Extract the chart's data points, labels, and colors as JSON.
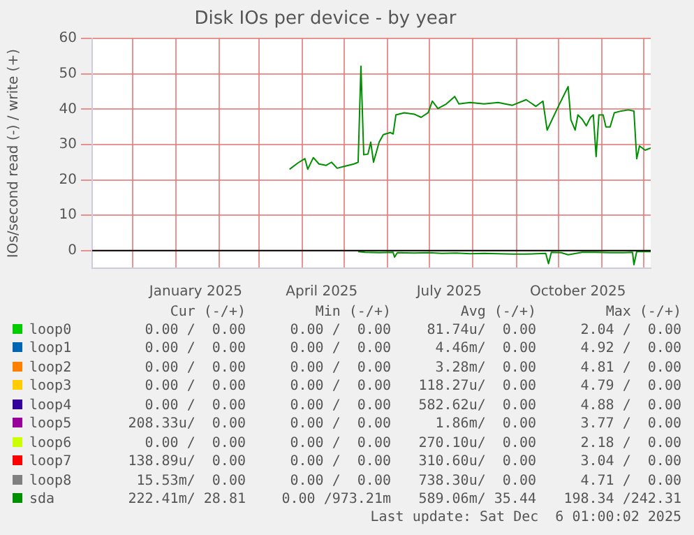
{
  "chart_data": {
    "type": "line",
    "title": "Disk IOs per device - by year",
    "ylabel": "IOs/second read (-) / write (+)",
    "xlim": [
      "2024-11-02",
      "2025-12-06"
    ],
    "xticks": [
      {
        "value": "2024-12-01",
        "label": null
      },
      {
        "value": "2025-01-01",
        "label": null
      },
      {
        "value": "2025-01-15",
        "label": "January 2025"
      },
      {
        "value": "2025-02-01",
        "label": null
      },
      {
        "value": "2025-03-01",
        "label": null
      },
      {
        "value": "2025-04-01",
        "label": null
      },
      {
        "value": "2025-04-15",
        "label": "April 2025"
      },
      {
        "value": "2025-05-01",
        "label": null
      },
      {
        "value": "2025-06-01",
        "label": null
      },
      {
        "value": "2025-07-01",
        "label": null
      },
      {
        "value": "2025-07-15",
        "label": "July 2025"
      },
      {
        "value": "2025-08-01",
        "label": null
      },
      {
        "value": "2025-09-01",
        "label": null
      },
      {
        "value": "2025-10-01",
        "label": null
      },
      {
        "value": "2025-10-15",
        "label": "October 2025"
      },
      {
        "value": "2025-11-01",
        "label": null
      },
      {
        "value": "2025-12-01",
        "label": null
      }
    ],
    "ylim": [
      -5,
      60
    ],
    "yticks": [
      0,
      10,
      20,
      30,
      40,
      50,
      60
    ],
    "grid": true,
    "legend": "bottom",
    "marker": "none",
    "ref_lines": [
      {
        "axis": "y",
        "value": 0,
        "color": "#000000"
      }
    ],
    "series": [
      {
        "name": "loop0",
        "color": "#00cc00"
      },
      {
        "name": "loop1",
        "color": "#0066b3"
      },
      {
        "name": "loop2",
        "color": "#ff8000"
      },
      {
        "name": "loop3",
        "color": "#ffcc00"
      },
      {
        "name": "loop4",
        "color": "#330099"
      },
      {
        "name": "loop5",
        "color": "#990099"
      },
      {
        "name": "loop6",
        "color": "#ccff00"
      },
      {
        "name": "loop7",
        "color": "#ff0000"
      },
      {
        "name": "loop8",
        "color": "#808080"
      },
      {
        "name": "sda",
        "color": "#008f00",
        "x": [
          "2025-03-23",
          "2025-03-29",
          "2025-04-03",
          "2025-04-05",
          "2025-04-09",
          "2025-04-13",
          "2025-04-18",
          "2025-04-22",
          "2025-04-26",
          "2025-05-01",
          "2025-05-08",
          "2025-05-11",
          "2025-05-13",
          "2025-05-15",
          "2025-05-18",
          "2025-05-20",
          "2025-05-22",
          "2025-05-26",
          "2025-05-29",
          "2025-06-03",
          "2025-06-05",
          "2025-06-07",
          "2025-06-13",
          "2025-06-20",
          "2025-06-25",
          "2025-06-30",
          "2025-07-03",
          "2025-07-07",
          "2025-07-13",
          "2025-07-19",
          "2025-07-22",
          "2025-07-30",
          "2025-08-09",
          "2025-08-19",
          "2025-08-29",
          "2025-09-08",
          "2025-09-15",
          "2025-09-20",
          "2025-09-23",
          "2025-10-01",
          "2025-10-08",
          "2025-10-10",
          "2025-10-13",
          "2025-10-15",
          "2025-10-18",
          "2025-10-21",
          "2025-10-24",
          "2025-10-26",
          "2025-10-28",
          "2025-10-30",
          "2025-11-02",
          "2025-11-04",
          "2025-11-07",
          "2025-11-10",
          "2025-11-15",
          "2025-11-20",
          "2025-11-24",
          "2025-11-26",
          "2025-11-28",
          "2025-12-02",
          "2025-12-06"
        ],
        "values": [
          23.0,
          24.8,
          26.0,
          23.0,
          26.3,
          24.5,
          24.1,
          25.0,
          23.3,
          23.8,
          24.5,
          25.0,
          52.2,
          27.1,
          27.3,
          30.7,
          25.0,
          30.7,
          32.8,
          33.4,
          33.0,
          38.4,
          39.0,
          38.6,
          37.7,
          39.0,
          42.3,
          40.2,
          41.5,
          43.6,
          41.5,
          41.9,
          41.5,
          41.9,
          41.1,
          42.7,
          40.8,
          42.3,
          34.1,
          40.8,
          46.4,
          37.0,
          34.1,
          38.4,
          37.2,
          35.3,
          37.7,
          38.4,
          26.6,
          38.4,
          38.4,
          35.0,
          35.0,
          39.0,
          39.5,
          39.8,
          39.5,
          26.0,
          29.6,
          28.4,
          29.0
        ]
      },
      {
        "color": "#008f00",
        "x": [
          "2025-05-11",
          "2025-05-16",
          "2025-05-26",
          "2025-06-05",
          "2025-06-06",
          "2025-06-08",
          "2025-06-20",
          "2025-06-30",
          "2025-07-10",
          "2025-07-20",
          "2025-07-30",
          "2025-08-09",
          "2025-08-19",
          "2025-08-29",
          "2025-09-08",
          "2025-09-22",
          "2025-09-24",
          "2025-09-26",
          "2025-10-03",
          "2025-10-08",
          "2025-10-18",
          "2025-10-28",
          "2025-11-07",
          "2025-11-17",
          "2025-11-23",
          "2025-11-24",
          "2025-11-26",
          "2025-12-06"
        ],
        "values": [
          -0.3,
          -0.5,
          -0.6,
          -0.5,
          -1.9,
          -0.6,
          -0.7,
          -0.6,
          -0.8,
          -0.7,
          -0.9,
          -0.8,
          -0.9,
          -1.0,
          -1.0,
          -0.8,
          -3.7,
          -0.5,
          -0.6,
          -1.2,
          -0.5,
          -0.5,
          -0.6,
          -0.6,
          -0.5,
          -4.0,
          -0.3,
          -0.3
        ]
      }
    ],
    "annotations": [
      "Cur (-/+)",
      "Min (-/+)",
      "Avg (-/+)",
      "Max (-/+)",
      "0.00 /  0.00",
      "0.00 /  0.00",
      "81.74u/  0.00",
      "2.04 /  0.00",
      "0.00 /  0.00",
      "0.00 /  0.00",
      "4.46m/  0.00",
      "4.92 /  0.00",
      "0.00 /  0.00",
      "0.00 /  0.00",
      "3.28m/  0.00",
      "4.81 /  0.00",
      "0.00 /  0.00",
      "0.00 /  0.00",
      "118.27u/  0.00",
      "4.79 /  0.00",
      "0.00 /  0.00",
      "0.00 /  0.00",
      "582.62u/  0.00",
      "4.88 /  0.00",
      "208.33u/  0.00",
      "0.00 /  0.00",
      "1.86m/  0.00",
      "3.77 /  0.00",
      "0.00 /  0.00",
      "0.00 /  0.00",
      "270.10u/  0.00",
      "2.18 /  0.00",
      "138.89u/  0.00",
      "0.00 /  0.00",
      "310.60u/  0.00",
      "3.04 /  0.00",
      "15.53m/  0.00",
      "0.00 /  0.00",
      "738.30u/  0.00",
      "4.71 /  0.00",
      "222.41m/ 28.81",
      "0.00 /973.21m",
      "589.06m/ 35.44",
      "198.34 /242.31",
      "Last update: Sat Dec  6 01:00:02 2025"
    ]
  }
}
